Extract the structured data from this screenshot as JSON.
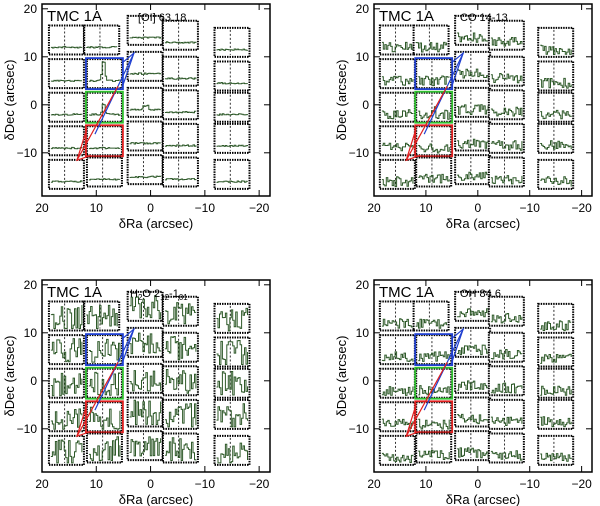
{
  "chart_data": [
    {
      "type": "spectral-map",
      "object": "TMC 1A",
      "line": "[OI] 63.18",
      "xlabel": "δRa (arcsec)",
      "ylabel": "δDec (arcsec)",
      "xlim": [
        20,
        -22
      ],
      "ylim": [
        -19,
        21
      ],
      "xticks": [
        20,
        10,
        0,
        -10,
        -20
      ],
      "yticks": [
        -10,
        0,
        10,
        20
      ],
      "spaxels": [
        {
          "ra": 15.5,
          "dec": 13.5,
          "profile": "flat"
        },
        {
          "ra": 9.0,
          "dec": 13.5,
          "profile": "flat"
        },
        {
          "ra": 1.0,
          "dec": 15.5,
          "profile": "flat"
        },
        {
          "ra": -5.5,
          "dec": 14.5,
          "profile": "flat"
        },
        {
          "ra": -15.0,
          "dec": 13.0,
          "profile": "flat"
        },
        {
          "ra": 15.5,
          "dec": 6.5,
          "profile": "flat"
        },
        {
          "ra": 8.5,
          "dec": 6.5,
          "profile": "peak",
          "highlight": "blue"
        },
        {
          "ra": 1.0,
          "dec": 8.0,
          "profile": "flat"
        },
        {
          "ra": -5.5,
          "dec": 7.0,
          "profile": "flat"
        },
        {
          "ra": -15.0,
          "dec": 6.0,
          "profile": "flat"
        },
        {
          "ra": 15.5,
          "dec": -0.5,
          "profile": "flat"
        },
        {
          "ra": 8.5,
          "dec": -0.5,
          "profile": "peak-small",
          "highlight": "green"
        },
        {
          "ra": 1.0,
          "dec": 0.5,
          "profile": "small"
        },
        {
          "ra": -5.5,
          "dec": 0.0,
          "profile": "flat"
        },
        {
          "ra": -15.0,
          "dec": -0.5,
          "profile": "flat"
        },
        {
          "ra": 15.5,
          "dec": -7.5,
          "profile": "flat"
        },
        {
          "ra": 8.5,
          "dec": -7.5,
          "profile": "flat",
          "highlight": "red"
        },
        {
          "ra": 1.0,
          "dec": -6.5,
          "profile": "flat"
        },
        {
          "ra": -5.5,
          "dec": -7.0,
          "profile": "flat"
        },
        {
          "ra": -15.0,
          "dec": -7.0,
          "profile": "flat"
        },
        {
          "ra": 15.5,
          "dec": -14.5,
          "profile": "flat"
        },
        {
          "ra": 8.5,
          "dec": -14.0,
          "profile": "flat"
        },
        {
          "ra": 1.0,
          "dec": -13.5,
          "profile": "flat"
        },
        {
          "ra": -5.5,
          "dec": -14.0,
          "profile": "flat"
        },
        {
          "ra": -15.0,
          "dec": -14.5,
          "profile": "flat"
        }
      ]
    },
    {
      "type": "spectral-map",
      "object": "TMC 1A",
      "line": "CO 14-13",
      "xlabel": "δRa (arcsec)",
      "ylabel": "δDec (arcsec)",
      "xlim": [
        20,
        -22
      ],
      "ylim": [
        -19,
        21
      ],
      "xticks": [
        20,
        10,
        0,
        -10,
        -20
      ],
      "yticks": [
        -10,
        0,
        10,
        20
      ],
      "spaxels": [
        {
          "ra": 15.5,
          "dec": 13.5,
          "profile": "noisy"
        },
        {
          "ra": 9.0,
          "dec": 13.5,
          "profile": "noisy"
        },
        {
          "ra": 1.0,
          "dec": 15.5,
          "profile": "noisy"
        },
        {
          "ra": -5.5,
          "dec": 14.5,
          "profile": "noisy"
        },
        {
          "ra": -15.0,
          "dec": 13.0,
          "profile": "noisy"
        },
        {
          "ra": 15.5,
          "dec": 6.5,
          "profile": "noisy"
        },
        {
          "ra": 8.5,
          "dec": 6.5,
          "profile": "noisy",
          "highlight": "blue"
        },
        {
          "ra": 1.0,
          "dec": 8.0,
          "profile": "noisy"
        },
        {
          "ra": -5.5,
          "dec": 7.0,
          "profile": "noisy"
        },
        {
          "ra": -15.0,
          "dec": 6.0,
          "profile": "noisy"
        },
        {
          "ra": 15.5,
          "dec": -0.5,
          "profile": "noisy"
        },
        {
          "ra": 8.5,
          "dec": -0.5,
          "profile": "noisy-peak",
          "highlight": "green"
        },
        {
          "ra": 1.0,
          "dec": 0.5,
          "profile": "noisy"
        },
        {
          "ra": -5.5,
          "dec": 0.0,
          "profile": "noisy"
        },
        {
          "ra": -15.0,
          "dec": -0.5,
          "profile": "noisy"
        },
        {
          "ra": 15.5,
          "dec": -7.5,
          "profile": "noisy"
        },
        {
          "ra": 8.5,
          "dec": -7.5,
          "profile": "noisy",
          "highlight": "red"
        },
        {
          "ra": 1.0,
          "dec": -6.5,
          "profile": "noisy"
        },
        {
          "ra": -5.5,
          "dec": -7.0,
          "profile": "noisy"
        },
        {
          "ra": -15.0,
          "dec": -7.0,
          "profile": "noisy"
        },
        {
          "ra": 15.5,
          "dec": -14.5,
          "profile": "noisy"
        },
        {
          "ra": 8.5,
          "dec": -14.0,
          "profile": "noisy"
        },
        {
          "ra": 1.0,
          "dec": -13.5,
          "profile": "noisy"
        },
        {
          "ra": -5.5,
          "dec": -14.0,
          "profile": "noisy"
        },
        {
          "ra": -15.0,
          "dec": -14.5,
          "profile": "noisy"
        }
      ]
    },
    {
      "type": "spectral-map",
      "object": "TMC 1A",
      "line": "H2O 2_12-1_01",
      "line_display": {
        "base": "H",
        "sub1": "2",
        "mid": "O 2",
        "sub2": "12",
        "dash": "-1",
        "sub3": "01"
      },
      "xlabel": "δRa (arcsec)",
      "ylabel": "δDec (arcsec)",
      "xlim": [
        20,
        -22
      ],
      "ylim": [
        -19,
        21
      ],
      "xticks": [
        20,
        10,
        0,
        -10,
        -20
      ],
      "yticks": [
        -10,
        0,
        10,
        20
      ],
      "spaxels": [
        {
          "ra": 15.5,
          "dec": 13.5,
          "profile": "very-noisy"
        },
        {
          "ra": 9.0,
          "dec": 13.5,
          "profile": "very-noisy"
        },
        {
          "ra": 1.0,
          "dec": 15.5,
          "profile": "very-noisy"
        },
        {
          "ra": -5.5,
          "dec": 14.5,
          "profile": "very-noisy"
        },
        {
          "ra": -15.0,
          "dec": 13.0,
          "profile": "very-noisy"
        },
        {
          "ra": 15.5,
          "dec": 6.5,
          "profile": "very-noisy"
        },
        {
          "ra": 8.5,
          "dec": 6.5,
          "profile": "very-noisy",
          "highlight": "blue"
        },
        {
          "ra": 1.0,
          "dec": 8.0,
          "profile": "very-noisy"
        },
        {
          "ra": -5.5,
          "dec": 7.0,
          "profile": "very-noisy"
        },
        {
          "ra": -15.0,
          "dec": 6.0,
          "profile": "very-noisy"
        },
        {
          "ra": 15.5,
          "dec": -0.5,
          "profile": "very-noisy"
        },
        {
          "ra": 8.5,
          "dec": -0.5,
          "profile": "very-noisy",
          "highlight": "green"
        },
        {
          "ra": 1.0,
          "dec": 0.5,
          "profile": "very-noisy"
        },
        {
          "ra": -5.5,
          "dec": 0.0,
          "profile": "very-noisy"
        },
        {
          "ra": -15.0,
          "dec": -0.5,
          "profile": "very-noisy"
        },
        {
          "ra": 15.5,
          "dec": -7.5,
          "profile": "very-noisy"
        },
        {
          "ra": 8.5,
          "dec": -7.5,
          "profile": "very-noisy",
          "highlight": "red"
        },
        {
          "ra": 1.0,
          "dec": -6.5,
          "profile": "very-noisy"
        },
        {
          "ra": -5.5,
          "dec": -7.0,
          "profile": "very-noisy"
        },
        {
          "ra": -15.0,
          "dec": -7.0,
          "profile": "very-noisy"
        },
        {
          "ra": 15.5,
          "dec": -14.5,
          "profile": "very-noisy"
        },
        {
          "ra": 8.5,
          "dec": -14.0,
          "profile": "very-noisy"
        },
        {
          "ra": 1.0,
          "dec": -13.5,
          "profile": "very-noisy"
        },
        {
          "ra": -5.5,
          "dec": -14.0,
          "profile": "very-noisy"
        },
        {
          "ra": -15.0,
          "dec": -14.5,
          "profile": "very-noisy"
        }
      ]
    },
    {
      "type": "spectral-map",
      "object": "TMC 1A",
      "line": "OH 84.6",
      "xlabel": "δRa (arcsec)",
      "ylabel": "δDec (arcsec)",
      "xlim": [
        20,
        -22
      ],
      "ylim": [
        -19,
        21
      ],
      "xticks": [
        20,
        10,
        0,
        -10,
        -20
      ],
      "yticks": [
        -10,
        0,
        10,
        20
      ],
      "spaxels": [
        {
          "ra": 15.5,
          "dec": 13.5,
          "profile": "noisy"
        },
        {
          "ra": 9.0,
          "dec": 13.5,
          "profile": "noisy"
        },
        {
          "ra": 1.0,
          "dec": 15.5,
          "profile": "noisy"
        },
        {
          "ra": -5.5,
          "dec": 14.5,
          "profile": "noisy"
        },
        {
          "ra": -15.0,
          "dec": 13.0,
          "profile": "noisy"
        },
        {
          "ra": 15.5,
          "dec": 6.5,
          "profile": "noisy"
        },
        {
          "ra": 8.5,
          "dec": 6.5,
          "profile": "noisy",
          "highlight": "blue"
        },
        {
          "ra": 1.0,
          "dec": 8.0,
          "profile": "noisy"
        },
        {
          "ra": -5.5,
          "dec": 7.0,
          "profile": "noisy"
        },
        {
          "ra": -15.0,
          "dec": 6.0,
          "profile": "noisy"
        },
        {
          "ra": 15.5,
          "dec": -0.5,
          "profile": "noisy"
        },
        {
          "ra": 8.5,
          "dec": -0.5,
          "profile": "noisy",
          "highlight": "green"
        },
        {
          "ra": 1.0,
          "dec": 0.5,
          "profile": "noisy"
        },
        {
          "ra": -5.5,
          "dec": 0.0,
          "profile": "noisy"
        },
        {
          "ra": -15.0,
          "dec": -0.5,
          "profile": "noisy"
        },
        {
          "ra": 15.5,
          "dec": -7.5,
          "profile": "noisy"
        },
        {
          "ra": 8.5,
          "dec": -7.5,
          "profile": "noisy",
          "highlight": "red"
        },
        {
          "ra": 1.0,
          "dec": -6.5,
          "profile": "noisy"
        },
        {
          "ra": -5.5,
          "dec": -7.0,
          "profile": "noisy"
        },
        {
          "ra": -15.0,
          "dec": -7.0,
          "profile": "noisy"
        },
        {
          "ra": 15.5,
          "dec": -14.5,
          "profile": "noisy"
        },
        {
          "ra": 8.5,
          "dec": -14.0,
          "profile": "noisy"
        },
        {
          "ra": 1.0,
          "dec": -13.5,
          "profile": "noisy"
        },
        {
          "ra": -5.5,
          "dec": -14.0,
          "profile": "noisy"
        },
        {
          "ra": -15.0,
          "dec": -14.5,
          "profile": "noisy"
        }
      ]
    }
  ],
  "colors": {
    "spectrum": "#2f5a2a",
    "frame": "#000000",
    "blue": "#1f3fd0",
    "green": "#2fc02f",
    "red": "#e01f1f"
  }
}
